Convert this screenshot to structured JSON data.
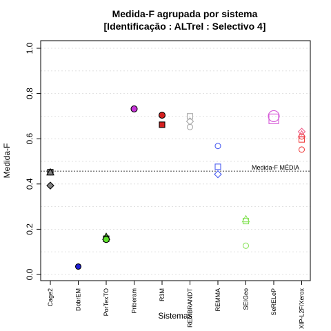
{
  "chart_data": {
    "type": "scatter",
    "title": "Medida-F agrupada por sistema",
    "subtitle": "[Identificação : ALTrel : Selectivo 4]",
    "xlabel": "Sistemas",
    "ylabel": "Medida-F",
    "ylim": [
      0,
      1
    ],
    "yticks": [
      "0.0",
      "0.2",
      "0.4",
      "0.6",
      "0.8",
      "1.0"
    ],
    "grid": "horizontal dotted",
    "categories": [
      "Cage2",
      "DobrEM",
      "PorTexTO",
      "Priberam",
      "R3M",
      "REMBRANDT",
      "REMMA",
      "SEIGeo",
      "SeRELeP",
      "XIP-L2F/Xerox"
    ],
    "reference_line": {
      "label": "Medida-F MÉDIA",
      "value": 0.457
    },
    "points": [
      {
        "category": "Cage2",
        "value": 0.452,
        "shape": "circle",
        "color": "#808080",
        "filled": true,
        "size": 4
      },
      {
        "category": "Cage2",
        "value": 0.452,
        "shape": "square",
        "color": "#808080",
        "filled": true,
        "size": 4
      },
      {
        "category": "Cage2",
        "value": 0.452,
        "shape": "triangle",
        "color": "#808080",
        "filled": true,
        "size": 5
      },
      {
        "category": "Cage2",
        "value": 0.393,
        "shape": "diamond",
        "color": "#808080",
        "filled": true,
        "size": 5
      },
      {
        "category": "DobrEM",
        "value": 0.035,
        "shape": "circle",
        "color": "#1f1fd6",
        "filled": true,
        "size": 4
      },
      {
        "category": "PorTexTO",
        "value": 0.167,
        "shape": "triangle",
        "color": "#5ee12b",
        "filled": true,
        "size": 5
      },
      {
        "category": "PorTexTO",
        "value": 0.158,
        "shape": "square",
        "color": "#5ee12b",
        "filled": true,
        "size": 4
      },
      {
        "category": "PorTexTO",
        "value": 0.155,
        "shape": "circle",
        "color": "#5ee12b",
        "filled": true,
        "size": 4.5
      },
      {
        "category": "Priberam",
        "value": 0.732,
        "shape": "circle",
        "color": "#c634d8",
        "filled": true,
        "size": 4.5
      },
      {
        "category": "R3M",
        "value": 0.704,
        "shape": "circle",
        "color": "#d42020",
        "filled": true,
        "size": 4.5
      },
      {
        "category": "R3M",
        "value": 0.662,
        "shape": "square",
        "color": "#d42020",
        "filled": true,
        "size": 4
      },
      {
        "category": "REMBRANDT",
        "value": 0.699,
        "shape": "square",
        "color": "#a9a9a9",
        "filled": false,
        "size": 4
      },
      {
        "category": "REMBRANDT",
        "value": 0.677,
        "shape": "diamond",
        "color": "#a9a9a9",
        "filled": false,
        "size": 5
      },
      {
        "category": "REMBRANDT",
        "value": 0.652,
        "shape": "circle",
        "color": "#a9a9a9",
        "filled": false,
        "size": 4
      },
      {
        "category": "REMMA",
        "value": 0.568,
        "shape": "circle",
        "color": "#4a5cf0",
        "filled": false,
        "size": 4
      },
      {
        "category": "REMMA",
        "value": 0.476,
        "shape": "square",
        "color": "#4a5cf0",
        "filled": false,
        "size": 4
      },
      {
        "category": "REMMA",
        "value": 0.443,
        "shape": "diamond",
        "color": "#4a5cf0",
        "filled": false,
        "size": 5
      },
      {
        "category": "SEIGeo",
        "value": 0.245,
        "shape": "triangle",
        "color": "#88e35a",
        "filled": false,
        "size": 5
      },
      {
        "category": "SEIGeo",
        "value": 0.236,
        "shape": "square",
        "color": "#88e35a",
        "filled": false,
        "size": 4
      },
      {
        "category": "SEIGeo",
        "value": 0.127,
        "shape": "circle",
        "color": "#88e35a",
        "filled": false,
        "size": 4
      },
      {
        "category": "SeRELeP",
        "value": 0.7,
        "shape": "circle",
        "color": "#d65ad8",
        "filled": false,
        "size": 8
      },
      {
        "category": "SeRELeP",
        "value": 0.688,
        "shape": "square",
        "color": "#d65ad8",
        "filled": false,
        "size": 7
      },
      {
        "category": "XIP-L2F/Xerox",
        "value": 0.631,
        "shape": "diamond",
        "color": "#f0608a",
        "filled": false,
        "size": 5
      },
      {
        "category": "XIP-L2F/Xerox",
        "value": 0.62,
        "shape": "triangle",
        "color": "#f0608a",
        "filled": false,
        "size": 5
      },
      {
        "category": "XIP-L2F/Xerox",
        "value": 0.61,
        "shape": "circle",
        "color": "#f04040",
        "filled": false,
        "size": 4
      },
      {
        "category": "XIP-L2F/Xerox",
        "value": 0.597,
        "shape": "square",
        "color": "#f04040",
        "filled": false,
        "size": 4
      },
      {
        "category": "XIP-L2F/Xerox",
        "value": 0.552,
        "shape": "circle",
        "color": "#f04040",
        "filled": false,
        "size": 4
      }
    ]
  }
}
